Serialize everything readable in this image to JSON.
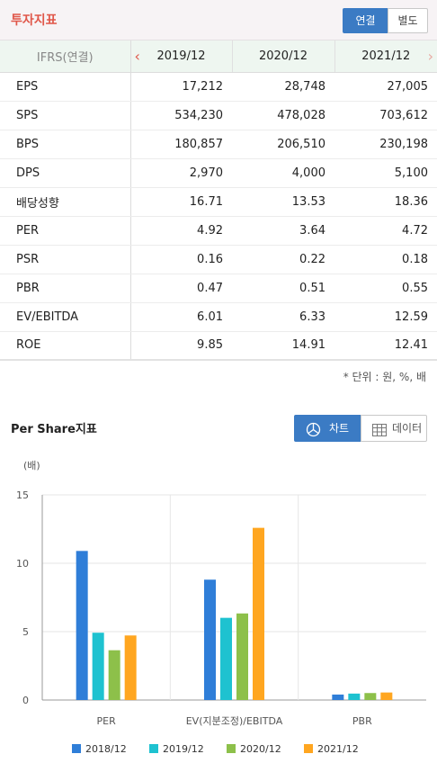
{
  "header": {
    "title": "투자지표",
    "toggle": {
      "consolidated": "연결",
      "separate": "별도"
    }
  },
  "table": {
    "label_header": "IFRS(연결)",
    "years": [
      "2019/12",
      "2020/12",
      "2021/12"
    ],
    "rows": [
      {
        "metric": "EPS",
        "values": [
          "17,212",
          "28,748",
          "27,005"
        ]
      },
      {
        "metric": "SPS",
        "values": [
          "534,230",
          "478,028",
          "703,612"
        ]
      },
      {
        "metric": "BPS",
        "values": [
          "180,857",
          "206,510",
          "230,198"
        ]
      },
      {
        "metric": "DPS",
        "values": [
          "2,970",
          "4,000",
          "5,100"
        ]
      },
      {
        "metric": "배당성향",
        "values": [
          "16.71",
          "13.53",
          "18.36"
        ]
      },
      {
        "metric": "PER",
        "values": [
          "4.92",
          "3.64",
          "4.72"
        ]
      },
      {
        "metric": "PSR",
        "values": [
          "0.16",
          "0.22",
          "0.18"
        ]
      },
      {
        "metric": "PBR",
        "values": [
          "0.47",
          "0.51",
          "0.55"
        ]
      },
      {
        "metric": "EV/EBITDA",
        "values": [
          "6.01",
          "6.33",
          "12.59"
        ]
      },
      {
        "metric": "ROE",
        "values": [
          "9.85",
          "14.91",
          "12.41"
        ]
      }
    ],
    "unit_note": "* 단위 : 원, %, 배"
  },
  "per_share": {
    "title": "Per Share지표",
    "tabs": {
      "chart": "차트",
      "data": "데이터"
    }
  },
  "chart_data": {
    "type": "bar",
    "ylabel": "(배)",
    "ylim": [
      0,
      15
    ],
    "yticks": [
      0,
      5,
      10,
      15
    ],
    "categories": [
      "PER",
      "EV(지분조정)/EBITDA",
      "PBR"
    ],
    "series": [
      {
        "name": "2018/12",
        "color": "#2f7ed8",
        "values": [
          10.9,
          8.8,
          0.4
        ]
      },
      {
        "name": "2019/12",
        "color": "#1ec2d0",
        "values": [
          4.92,
          6.01,
          0.47
        ]
      },
      {
        "name": "2020/12",
        "color": "#8dc04a",
        "values": [
          3.64,
          6.33,
          0.51
        ]
      },
      {
        "name": "2021/12",
        "color": "#ffa620",
        "values": [
          4.72,
          12.59,
          0.55
        ]
      }
    ],
    "grid": true,
    "legend": "bottom"
  }
}
